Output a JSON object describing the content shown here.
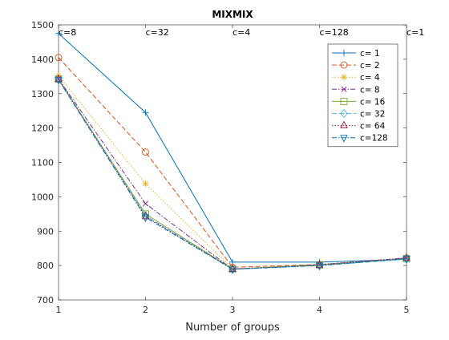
{
  "chart_data": {
    "type": "line",
    "title": "MIXMIX",
    "xlabel": "Number of groups",
    "ylabel": "",
    "x": [
      1,
      2,
      3,
      4,
      5
    ],
    "xlim": [
      1,
      5
    ],
    "ylim": [
      700,
      1500
    ],
    "xticks": [
      "1",
      "2",
      "3",
      "4",
      "5"
    ],
    "yticks": [
      "700",
      "800",
      "900",
      "1000",
      "1100",
      "1200",
      "1300",
      "1400",
      "1500"
    ],
    "grid": false,
    "legend_position": "top-right",
    "annotations": [
      {
        "text": "c=8",
        "x": 1
      },
      {
        "text": "c=32",
        "x": 2
      },
      {
        "text": "c=4",
        "x": 3
      },
      {
        "text": "c=128",
        "x": 4
      },
      {
        "text": "c=1",
        "x": 5
      }
    ],
    "series": [
      {
        "name": "c=  1",
        "values": [
          1475,
          1245,
          810,
          810,
          818
        ],
        "color": "#0072BD",
        "dash": "solid",
        "marker": "plus"
      },
      {
        "name": "c=  2",
        "values": [
          1405,
          1130,
          795,
          803,
          820
        ],
        "color": "#D95319",
        "dash": "dashed",
        "marker": "circle"
      },
      {
        "name": "c=  4",
        "values": [
          1352,
          1038,
          790,
          800,
          820
        ],
        "color": "#EDB120",
        "dash": "dotted",
        "marker": "asterisk"
      },
      {
        "name": "c=  8",
        "values": [
          1343,
          980,
          789,
          803,
          822
        ],
        "color": "#7E2F8E",
        "dash": "dashdot",
        "marker": "x"
      },
      {
        "name": "c= 16",
        "values": [
          1342,
          950,
          790,
          802,
          820
        ],
        "color": "#77AC30",
        "dash": "solid",
        "marker": "square"
      },
      {
        "name": "c= 32",
        "values": [
          1341,
          945,
          789,
          800,
          818
        ],
        "color": "#4DBEEE",
        "dash": "dashed",
        "marker": "diamond"
      },
      {
        "name": "c= 64",
        "values": [
          1342,
          943,
          790,
          801,
          822
        ],
        "color": "#A2142F",
        "dash": "dotted",
        "marker": "triangle-up"
      },
      {
        "name": "c=128",
        "values": [
          1340,
          940,
          789,
          800,
          820
        ],
        "color": "#0072BD",
        "dash": "dashdot",
        "marker": "triangle-down"
      }
    ]
  }
}
